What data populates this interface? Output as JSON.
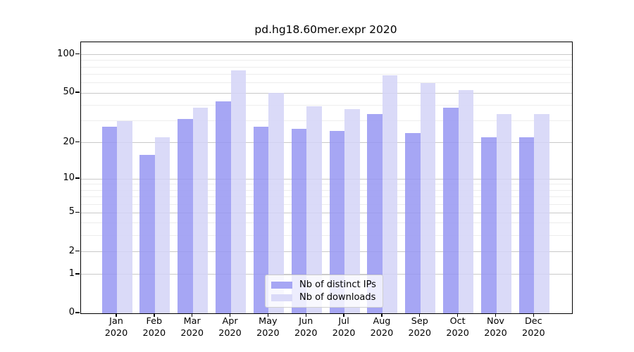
{
  "title": "pd.hg18.60mer.expr 2020",
  "chart_data": {
    "type": "bar",
    "title": "pd.hg18.60mer.expr 2020",
    "categories": [
      "Jan",
      "Feb",
      "Mar",
      "Apr",
      "May",
      "Jun",
      "Jul",
      "Aug",
      "Sep",
      "Oct",
      "Nov",
      "Dec"
    ],
    "year_label": "2020",
    "series": [
      {
        "name": "Nb of distinct IPs",
        "color": "#a6a6f4",
        "values": [
          27,
          16,
          31,
          43,
          27,
          26,
          25,
          34,
          24,
          38,
          22,
          22
        ]
      },
      {
        "name": "Nb of downloads",
        "color": "#dadaf8",
        "values": [
          30,
          22,
          38,
          75,
          50,
          39,
          37,
          69,
          60,
          53,
          34,
          34
        ]
      }
    ],
    "yscale": "log10(1+x)",
    "ylim": [
      0,
      125
    ],
    "y_ticks": [
      0,
      1,
      2,
      5,
      10,
      20,
      50,
      100
    ],
    "y_minor_ticks": [
      3,
      4,
      6,
      7,
      8,
      9,
      30,
      40,
      60,
      70,
      80,
      90
    ],
    "grid": true,
    "legend_position": "lower center",
    "colors": {
      "major_grid": "#c9c9c9",
      "minor_grid": "#ededed",
      "axis": "#000000",
      "text": "#000000"
    }
  }
}
